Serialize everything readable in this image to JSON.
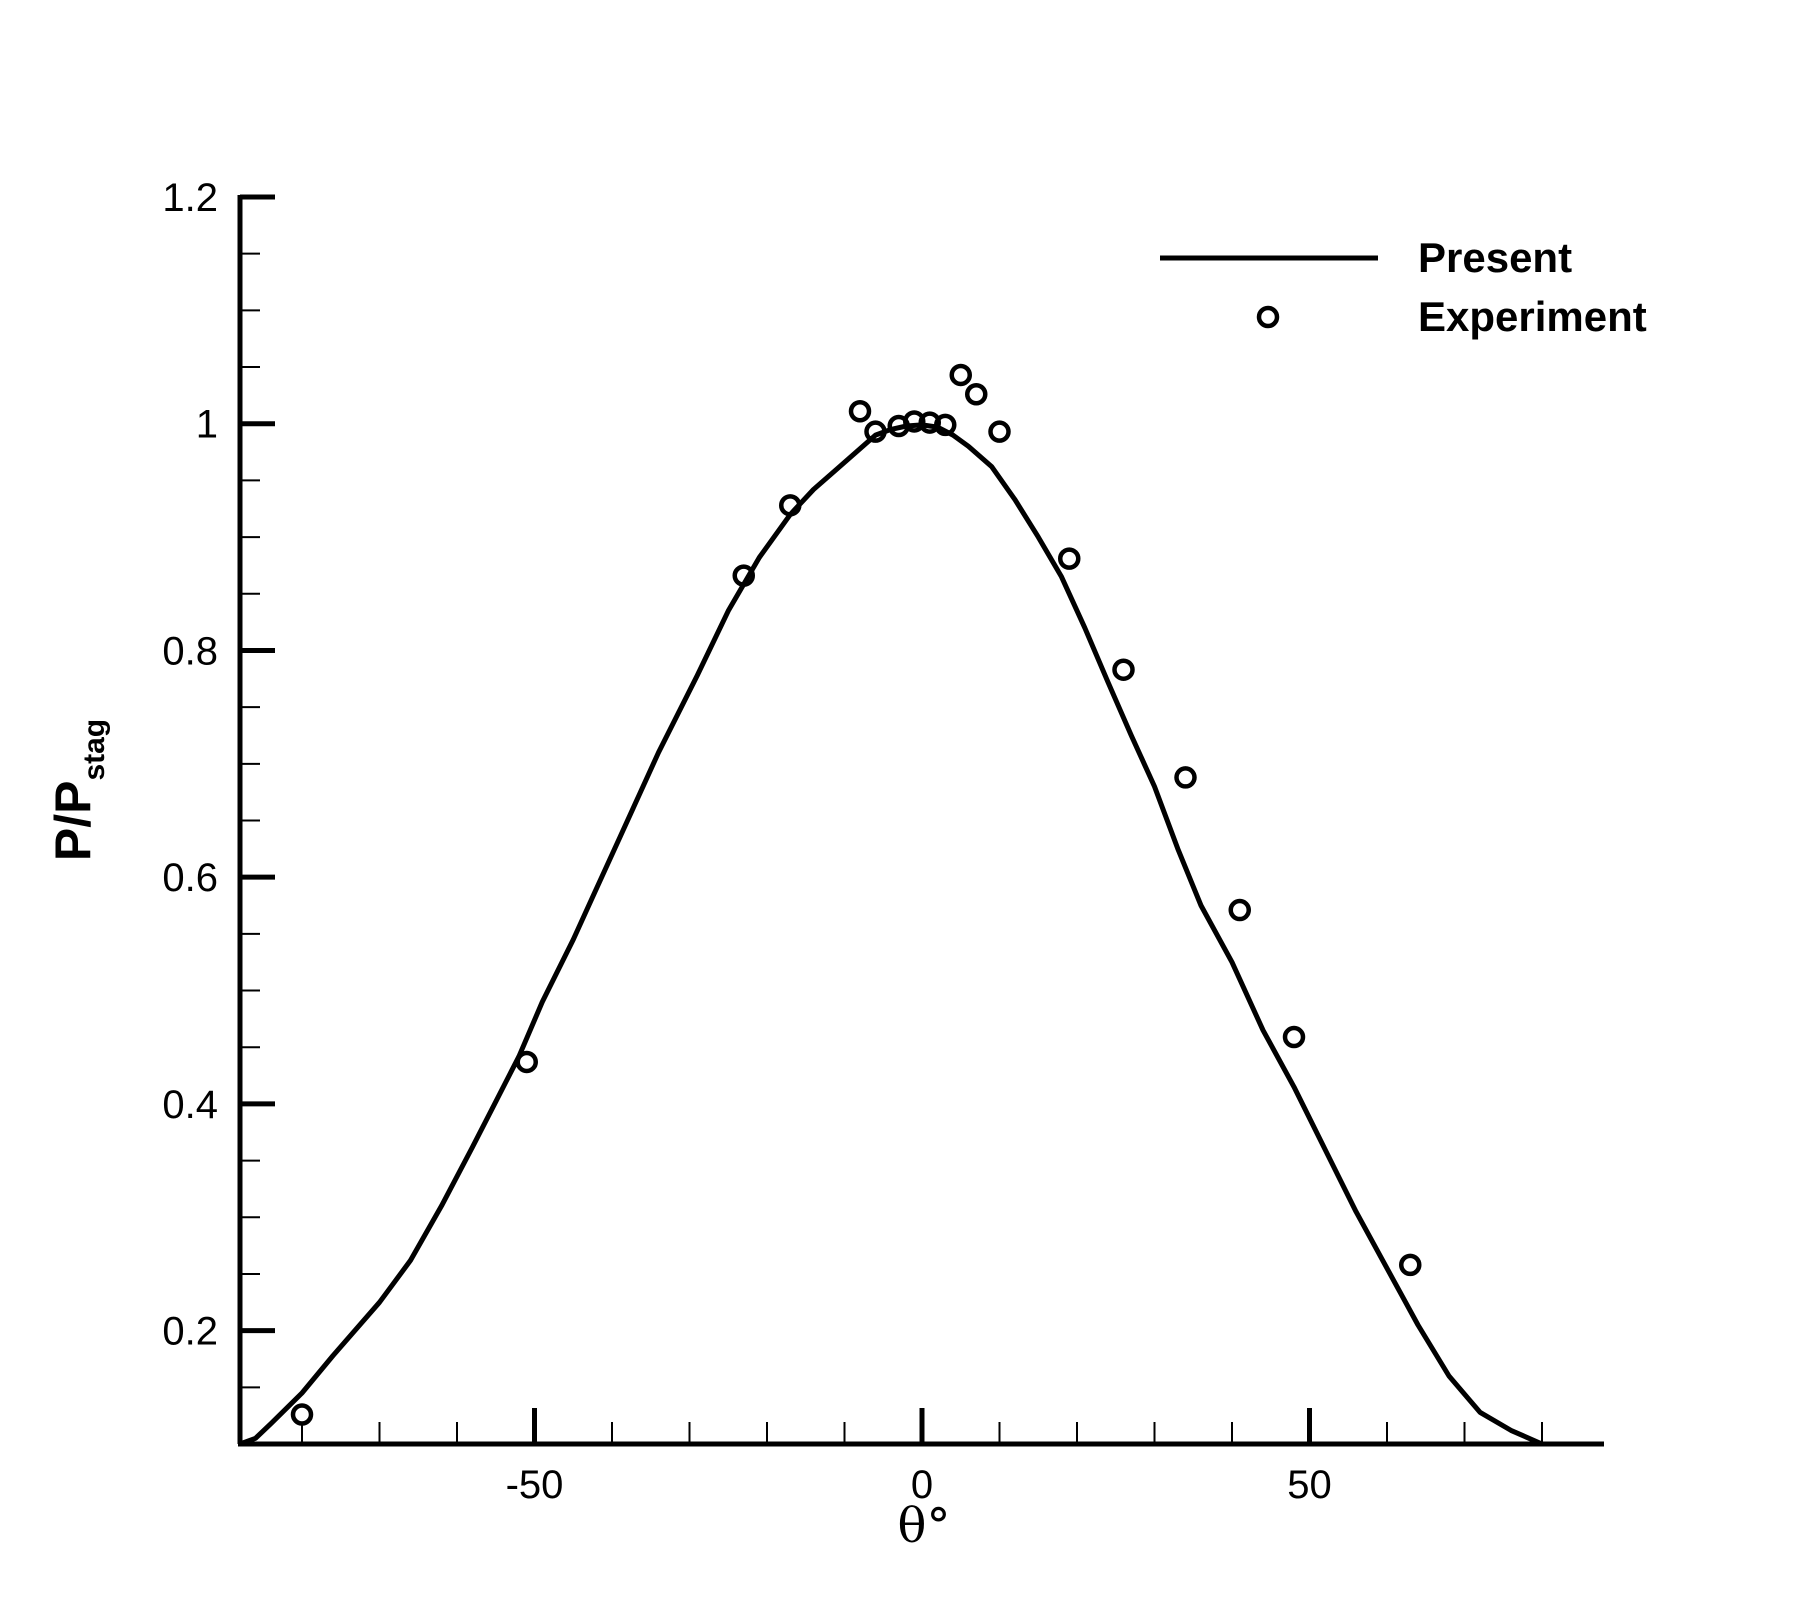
{
  "chart_data": {
    "type": "line",
    "xlabel": "θ°",
    "ylabel": {
      "main": "P/P",
      "sub": "stag"
    },
    "xlim": [
      -88,
      88
    ],
    "ylim": [
      0.1,
      1.2
    ],
    "x_ticks": [
      {
        "value": -50,
        "label": "-50"
      },
      {
        "value": 0,
        "label": "0"
      },
      {
        "value": 50,
        "label": "50"
      }
    ],
    "y_ticks": [
      {
        "value": 0.2,
        "label": "0.2"
      },
      {
        "value": 0.4,
        "label": "0.4"
      },
      {
        "value": 0.6,
        "label": "0.6"
      },
      {
        "value": 0.8,
        "label": "0.8"
      },
      {
        "value": 1.0,
        "label": "1"
      },
      {
        "value": 1.2,
        "label": "1.2"
      }
    ],
    "x_minor_step": 10,
    "y_minor_step": 0.05,
    "legend_position": "top-right",
    "series": [
      {
        "name": "Present",
        "style": "line",
        "points": [
          [
            -88,
            0.1
          ],
          [
            -86,
            0.105
          ],
          [
            -84,
            0.118
          ],
          [
            -80,
            0.145
          ],
          [
            -76,
            0.178
          ],
          [
            -70,
            0.225
          ],
          [
            -66,
            0.262
          ],
          [
            -62,
            0.31
          ],
          [
            -58,
            0.362
          ],
          [
            -55,
            0.402
          ],
          [
            -52,
            0.442
          ],
          [
            -49,
            0.49
          ],
          [
            -45,
            0.545
          ],
          [
            -42,
            0.59
          ],
          [
            -39,
            0.635
          ],
          [
            -34,
            0.71
          ],
          [
            -29,
            0.778
          ],
          [
            -25,
            0.835
          ],
          [
            -21,
            0.882
          ],
          [
            -17,
            0.92
          ],
          [
            -14,
            0.942
          ],
          [
            -11,
            0.96
          ],
          [
            -8,
            0.978
          ],
          [
            -6,
            0.99
          ],
          [
            -4,
            0.995
          ],
          [
            -2,
            0.998
          ],
          [
            0,
            0.999
          ],
          [
            2,
            0.997
          ],
          [
            4,
            0.99
          ],
          [
            6,
            0.98
          ],
          [
            9,
            0.962
          ],
          [
            12,
            0.933
          ],
          [
            15,
            0.9
          ],
          [
            18,
            0.865
          ],
          [
            21,
            0.82
          ],
          [
            24,
            0.772
          ],
          [
            27,
            0.725
          ],
          [
            30,
            0.68
          ],
          [
            33,
            0.625
          ],
          [
            36,
            0.575
          ],
          [
            40,
            0.525
          ],
          [
            44,
            0.465
          ],
          [
            48,
            0.415
          ],
          [
            52,
            0.36
          ],
          [
            56,
            0.305
          ],
          [
            60,
            0.255
          ],
          [
            64,
            0.205
          ],
          [
            68,
            0.16
          ],
          [
            72,
            0.128
          ],
          [
            76,
            0.112
          ],
          [
            80,
            0.1
          ]
        ]
      },
      {
        "name": "Experiment",
        "style": "markers",
        "marker": "open-circle",
        "points": [
          [
            -80,
            0.126
          ],
          [
            -51,
            0.437
          ],
          [
            -23,
            0.866
          ],
          [
            -17,
            0.928
          ],
          [
            -8,
            1.011
          ],
          [
            -6,
            0.993
          ],
          [
            -3,
            0.998
          ],
          [
            -1,
            1.002
          ],
          [
            1,
            1.001
          ],
          [
            3,
            0.999
          ],
          [
            5,
            1.043
          ],
          [
            7,
            1.026
          ],
          [
            10,
            0.993
          ],
          [
            19,
            0.881
          ],
          [
            26,
            0.783
          ],
          [
            34,
            0.688
          ],
          [
            41,
            0.571
          ],
          [
            48,
            0.459
          ],
          [
            63,
            0.258
          ]
        ]
      }
    ],
    "line_color": "#000000",
    "marker_color": "#000000"
  }
}
